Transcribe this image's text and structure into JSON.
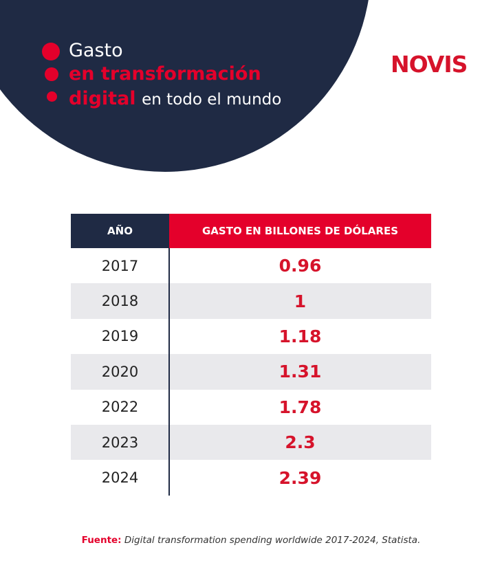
{
  "header": {
    "title": {
      "line1": "Gasto",
      "line2": "en transformación",
      "line3_highlight": "digital",
      "line3_rest": "en todo el mundo"
    },
    "logo": "NOVIS"
  },
  "table": {
    "columns": [
      "AÑO",
      "GASTO EN BILLONES DE DÓLARES"
    ],
    "rows": [
      [
        2017,
        0.96
      ],
      [
        2018,
        1
      ],
      [
        2019,
        1.18
      ],
      [
        2020,
        1.31
      ],
      [
        2022,
        1.78
      ],
      [
        2023,
        2.3
      ],
      [
        2024,
        2.39
      ]
    ]
  },
  "source": {
    "label": "Fuente:",
    "text": "Digital transformation spending worldwide 2017-2024, Statista."
  }
}
